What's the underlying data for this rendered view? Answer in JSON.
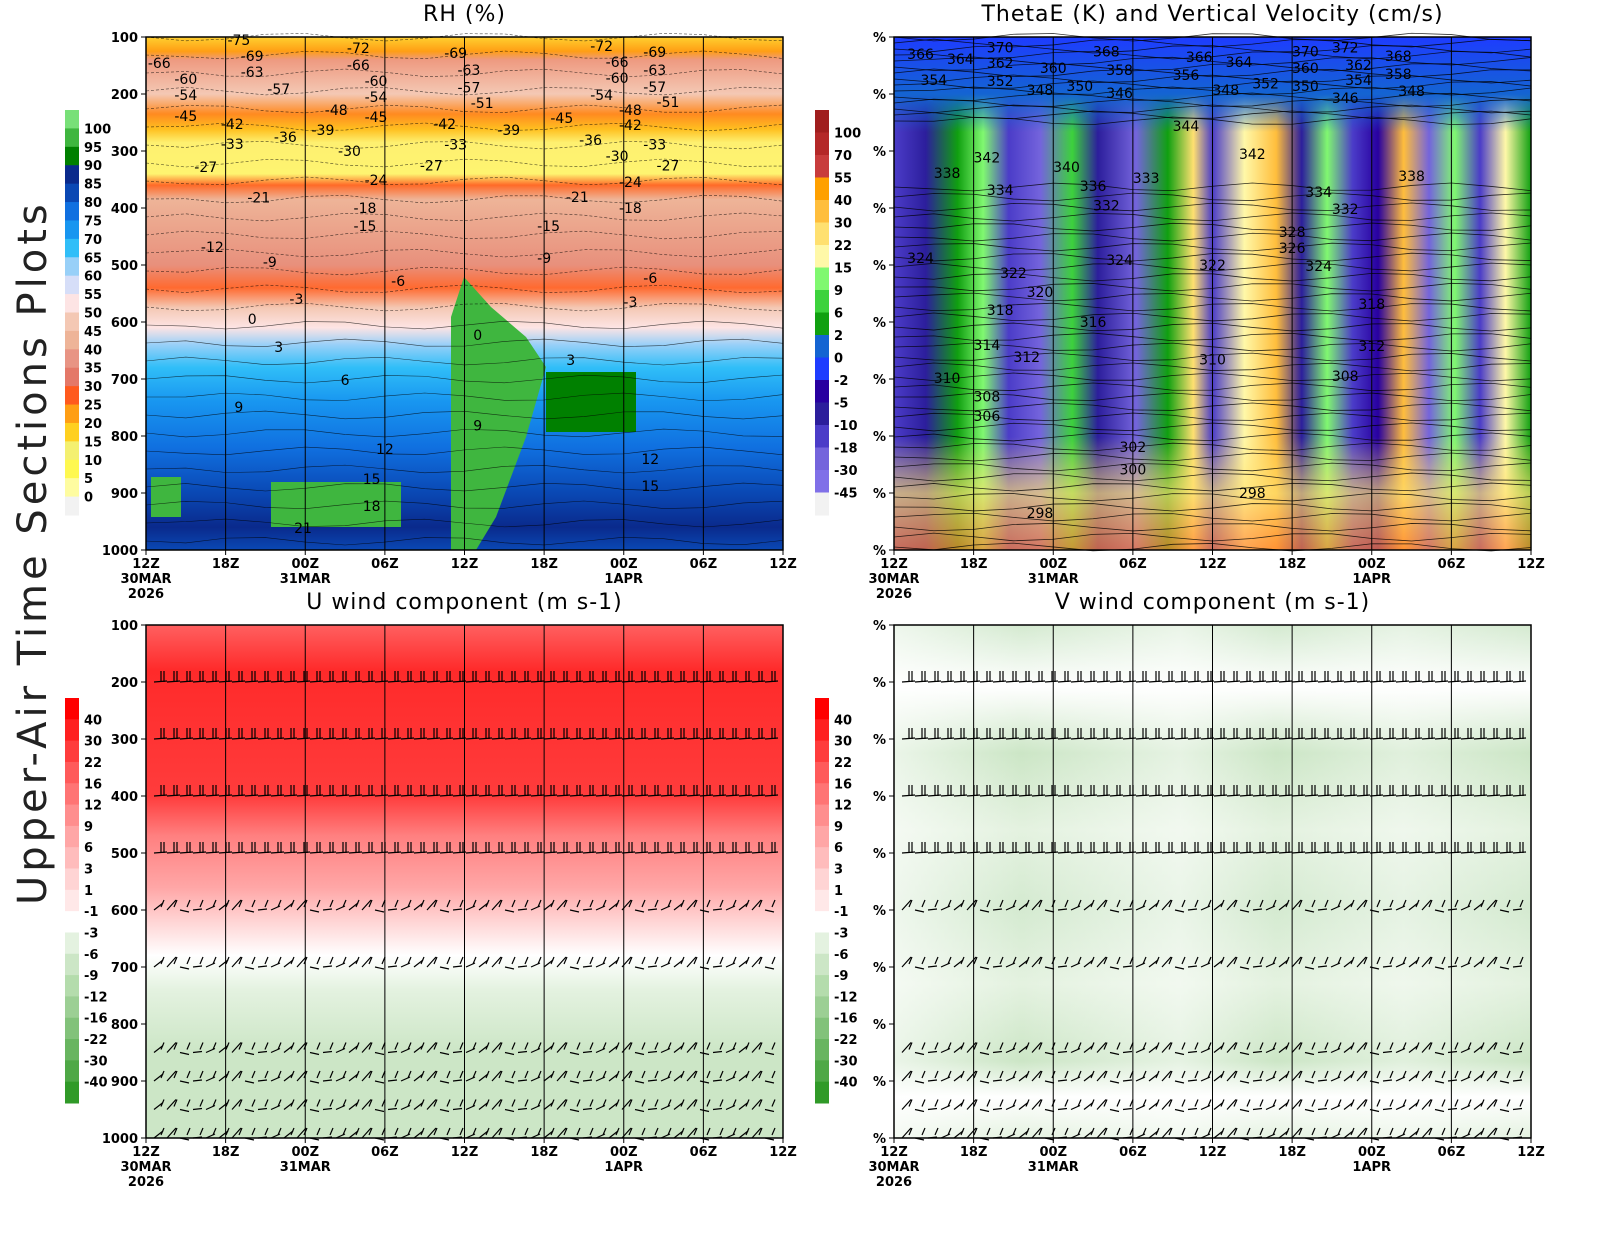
{
  "page_title": "Upper-Air Time Sections Plots",
  "time_axis": {
    "start": "2026-03-30T12:00",
    "end": "2026-04-01T12:00",
    "ticks": [
      {
        "hour": "12Z",
        "day": "30MAR",
        "year": "2026"
      },
      {
        "hour": "18Z",
        "day": "",
        "year": ""
      },
      {
        "hour": "00Z",
        "day": "31MAR",
        "year": ""
      },
      {
        "hour": "06Z",
        "day": "",
        "year": ""
      },
      {
        "hour": "12Z",
        "day": "",
        "year": ""
      },
      {
        "hour": "18Z",
        "day": "",
        "year": ""
      },
      {
        "hour": "00Z",
        "day": "1APR",
        "year": ""
      },
      {
        "hour": "06Z",
        "day": "",
        "year": ""
      },
      {
        "hour": "12Z",
        "day": "",
        "year": ""
      }
    ]
  },
  "chart_data": [
    {
      "id": "rh",
      "type": "heatmap",
      "title": "RH (%)",
      "ylim": [
        1000,
        100
      ],
      "y_ticks": [
        "100",
        "200",
        "300",
        "400",
        "500",
        "600",
        "700",
        "800",
        "900",
        "1000"
      ],
      "colorbar": {
        "labels": [
          "100",
          "95",
          "90",
          "85",
          "80",
          "75",
          "70",
          "65",
          "60",
          "55",
          "50",
          "45",
          "40",
          "35",
          "30",
          "25",
          "20",
          "15",
          "10",
          "5",
          "0"
        ],
        "colors": [
          "#78e078",
          "#3fb63f",
          "#008000",
          "#0a2a8c",
          "#0a48b4",
          "#1070e0",
          "#1896f0",
          "#30bef8",
          "#98d0f8",
          "#d6def8",
          "#fde4e4",
          "#f4c8b4",
          "#eeb498",
          "#e89484",
          "#e47868",
          "#ff5a1e",
          "#ff9e14",
          "#ffd020",
          "#f4f070",
          "#fef850",
          "#fefca0",
          "#f2f2f2"
        ]
      },
      "contour_labels": [
        {
          "t": "2026-03-30T13:00",
          "p": 146,
          "v": "-66"
        },
        {
          "t": "2026-03-30T15:00",
          "p": 174,
          "v": "-60"
        },
        {
          "t": "2026-03-30T15:00",
          "p": 202,
          "v": "-54"
        },
        {
          "t": "2026-03-30T15:00",
          "p": 239,
          "v": "-45"
        },
        {
          "t": "2026-03-30T19:00",
          "p": 105,
          "v": "-75"
        },
        {
          "t": "2026-03-30T20:00",
          "p": 133,
          "v": "-69"
        },
        {
          "t": "2026-03-30T20:00",
          "p": 161,
          "v": "-63"
        },
        {
          "t": "2026-03-30T22:00",
          "p": 191,
          "v": "-57"
        },
        {
          "t": "2026-03-30T18:30",
          "p": 253,
          "v": "-42"
        },
        {
          "t": "2026-03-30T18:30",
          "p": 288,
          "v": "-33"
        },
        {
          "t": "2026-03-30T22:30",
          "p": 275,
          "v": "-36"
        },
        {
          "t": "2026-03-30T16:30",
          "p": 328,
          "v": "-27"
        },
        {
          "t": "2026-03-30T20:30",
          "p": 382,
          "v": "-21"
        },
        {
          "t": "2026-03-30T17:00",
          "p": 468,
          "v": "-12"
        },
        {
          "t": "2026-03-30T21:20",
          "p": 495,
          "v": "-9"
        },
        {
          "t": "2026-03-30T23:20",
          "p": 560,
          "v": "-3"
        },
        {
          "t": "2026-03-30T20:00",
          "p": 595,
          "v": "0"
        },
        {
          "t": "2026-03-30T22:00",
          "p": 644,
          "v": "3"
        },
        {
          "t": "2026-03-30T19:00",
          "p": 749,
          "v": "9"
        },
        {
          "t": "2026-03-31T03:00",
          "p": 702,
          "v": "6"
        },
        {
          "t": "2026-03-31T06:00",
          "p": 823,
          "v": "12"
        },
        {
          "t": "2026-03-31T05:00",
          "p": 875,
          "v": "15"
        },
        {
          "t": "2026-03-31T05:00",
          "p": 923,
          "v": "18"
        },
        {
          "t": "2026-03-30T23:50",
          "p": 961,
          "v": "21"
        },
        {
          "t": "2026-03-31T04:00",
          "p": 119,
          "v": "-72"
        },
        {
          "t": "2026-03-31T04:00",
          "p": 149,
          "v": "-66"
        },
        {
          "t": "2026-03-31T05:20",
          "p": 177,
          "v": "-60"
        },
        {
          "t": "2026-03-31T05:20",
          "p": 205,
          "v": "-54"
        },
        {
          "t": "2026-03-31T02:20",
          "p": 228,
          "v": "-48"
        },
        {
          "t": "2026-03-31T05:20",
          "p": 240,
          "v": "-45"
        },
        {
          "t": "2026-03-31T01:20",
          "p": 263,
          "v": "-39"
        },
        {
          "t": "2026-03-31T03:20",
          "p": 300,
          "v": "-30"
        },
        {
          "t": "2026-03-31T05:20",
          "p": 351,
          "v": "-24"
        },
        {
          "t": "2026-03-31T04:30",
          "p": 400,
          "v": "-18"
        },
        {
          "t": "2026-03-31T04:30",
          "p": 432,
          "v": "-15"
        },
        {
          "t": "2026-03-31T09:30",
          "p": 325,
          "v": "-27"
        },
        {
          "t": "2026-03-31T07:00",
          "p": 528,
          "v": "-6"
        },
        {
          "t": "2026-03-31T11:20",
          "p": 128,
          "v": "-69"
        },
        {
          "t": "2026-03-31T12:20",
          "p": 158,
          "v": "-63"
        },
        {
          "t": "2026-03-31T12:20",
          "p": 189,
          "v": "-57"
        },
        {
          "t": "2026-03-31T13:20",
          "p": 216,
          "v": "-51"
        },
        {
          "t": "2026-03-31T10:30",
          "p": 253,
          "v": "-42"
        },
        {
          "t": "2026-03-31T11:20",
          "p": 289,
          "v": "-33"
        },
        {
          "t": "2026-03-31T15:20",
          "p": 263,
          "v": "-39"
        },
        {
          "t": "2026-03-31T13:00",
          "p": 623,
          "v": "0"
        },
        {
          "t": "2026-03-31T13:00",
          "p": 782,
          "v": "9"
        },
        {
          "t": "2026-03-31T20:00",
          "p": 667,
          "v": "3"
        },
        {
          "t": "2026-03-31T18:20",
          "p": 432,
          "v": "-15"
        },
        {
          "t": "2026-03-31T18:00",
          "p": 488,
          "v": "-9"
        },
        {
          "t": "2026-03-31T20:30",
          "p": 381,
          "v": "-21"
        },
        {
          "t": "2026-03-31T19:20",
          "p": 242,
          "v": "-45"
        },
        {
          "t": "2026-03-31T21:30",
          "p": 281,
          "v": "-36"
        },
        {
          "t": "2026-03-31T22:20",
          "p": 116,
          "v": "-72"
        },
        {
          "t": "2026-03-31T23:30",
          "p": 144,
          "v": "-66"
        },
        {
          "t": "2026-03-31T23:30",
          "p": 172,
          "v": "-60"
        },
        {
          "t": "2026-03-31T22:20",
          "p": 202,
          "v": "-54"
        },
        {
          "t": "2026-04-01T00:30",
          "p": 228,
          "v": "-48"
        },
        {
          "t": "2026-04-01T00:30",
          "p": 254,
          "v": "-42"
        },
        {
          "t": "2026-03-31T23:30",
          "p": 309,
          "v": "-30"
        },
        {
          "t": "2026-04-01T00:30",
          "p": 354,
          "v": "-24"
        },
        {
          "t": "2026-04-01T00:30",
          "p": 400,
          "v": "-18"
        },
        {
          "t": "2026-04-01T00:30",
          "p": 565,
          "v": "-3"
        },
        {
          "t": "2026-04-01T02:20",
          "p": 126,
          "v": "-69"
        },
        {
          "t": "2026-04-01T02:20",
          "p": 158,
          "v": "-63"
        },
        {
          "t": "2026-04-01T02:20",
          "p": 188,
          "v": "-57"
        },
        {
          "t": "2026-04-01T03:20",
          "p": 214,
          "v": "-51"
        },
        {
          "t": "2026-04-01T02:20",
          "p": 289,
          "v": "-33"
        },
        {
          "t": "2026-04-01T03:20",
          "p": 325,
          "v": "-27"
        },
        {
          "t": "2026-04-01T02:00",
          "p": 523,
          "v": "-6"
        },
        {
          "t": "2026-04-01T02:00",
          "p": 840,
          "v": "12"
        },
        {
          "t": "2026-04-01T02:00",
          "p": 888,
          "v": "15"
        }
      ]
    },
    {
      "id": "thetae",
      "type": "heatmap",
      "title": "ThetaE (K) and Vertical Velocity (cm/s)",
      "ylim": [
        1000,
        100
      ],
      "y_ticks": [
        "%",
        "%",
        "%",
        "%",
        "%",
        "%",
        "%",
        "%",
        "%",
        "%"
      ],
      "colorbar": {
        "labels": [
          "100",
          "70",
          "55",
          "40",
          "30",
          "22",
          "15",
          "9",
          "6",
          "2",
          "0",
          "-2",
          "-5",
          "-10",
          "-18",
          "-30",
          "-45"
        ],
        "colors": [
          "#a01e1e",
          "#b42828",
          "#c83c3c",
          "#ffa000",
          "#ffbe3c",
          "#ffe070",
          "#fff8a8",
          "#80f870",
          "#3cd23c",
          "#10a010",
          "#1464d2",
          "#1e3cff",
          "#2800a0",
          "#2c1e9c",
          "#4b3cc8",
          "#7464dc",
          "#8070e8",
          "#f2f2f2"
        ]
      },
      "contour_labels": [
        {
          "t": "2026-03-30T14:00",
          "p": 130,
          "v": "366"
        },
        {
          "t": "2026-03-30T17:00",
          "p": 139,
          "v": "364"
        },
        {
          "t": "2026-03-30T20:00",
          "p": 118,
          "v": "370"
        },
        {
          "t": "2026-03-30T20:00",
          "p": 146,
          "v": "362"
        },
        {
          "t": "2026-03-31T04:00",
          "p": 125,
          "v": "368"
        },
        {
          "t": "2026-03-31T00:00",
          "p": 154,
          "v": "360"
        },
        {
          "t": "2026-03-31T05:00",
          "p": 158,
          "v": "358"
        },
        {
          "t": "2026-03-30T15:00",
          "p": 175,
          "v": "354"
        },
        {
          "t": "2026-03-30T20:00",
          "p": 177,
          "v": "352"
        },
        {
          "t": "2026-03-30T23:00",
          "p": 193,
          "v": "348"
        },
        {
          "t": "2026-03-31T02:00",
          "p": 186,
          "v": "350"
        },
        {
          "t": "2026-03-31T05:00",
          "p": 198,
          "v": "346"
        },
        {
          "t": "2026-03-31T11:00",
          "p": 135,
          "v": "366"
        },
        {
          "t": "2026-03-31T14:00",
          "p": 144,
          "v": "364"
        },
        {
          "t": "2026-03-31T10:00",
          "p": 167,
          "v": "356"
        },
        {
          "t": "2026-03-31T13:00",
          "p": 193,
          "v": "348"
        },
        {
          "t": "2026-03-31T16:00",
          "p": 182,
          "v": "352"
        },
        {
          "t": "2026-03-31T19:00",
          "p": 125,
          "v": "370"
        },
        {
          "t": "2026-03-31T22:00",
          "p": 118,
          "v": "372"
        },
        {
          "t": "2026-03-31T19:00",
          "p": 154,
          "v": "360"
        },
        {
          "t": "2026-03-31T23:00",
          "p": 149,
          "v": "362"
        },
        {
          "t": "2026-04-01T02:00",
          "p": 133,
          "v": "368"
        },
        {
          "t": "2026-04-01T02:00",
          "p": 165,
          "v": "358"
        },
        {
          "t": "2026-03-31T23:00",
          "p": 175,
          "v": "354"
        },
        {
          "t": "2026-03-31T19:00",
          "p": 186,
          "v": "350"
        },
        {
          "t": "2026-03-31T22:00",
          "p": 207,
          "v": "346"
        },
        {
          "t": "2026-04-01T03:00",
          "p": 195,
          "v": "348"
        },
        {
          "t": "2026-03-31T10:00",
          "p": 256,
          "v": "344"
        },
        {
          "t": "2026-03-30T19:00",
          "p": 311,
          "v": "342"
        },
        {
          "t": "2026-03-30T16:00",
          "p": 339,
          "v": "338"
        },
        {
          "t": "2026-03-30T20:00",
          "p": 368,
          "v": "334"
        },
        {
          "t": "2026-03-31T01:00",
          "p": 328,
          "v": "340"
        },
        {
          "t": "2026-03-31T03:00",
          "p": 361,
          "v": "336"
        },
        {
          "t": "2026-03-31T07:00",
          "p": 347,
          "v": "333"
        },
        {
          "t": "2026-03-31T04:00",
          "p": 396,
          "v": "332"
        },
        {
          "t": "2026-03-31T15:00",
          "p": 305,
          "v": "342"
        },
        {
          "t": "2026-03-31T20:00",
          "p": 372,
          "v": "334"
        },
        {
          "t": "2026-03-31T22:00",
          "p": 402,
          "v": "332"
        },
        {
          "t": "2026-04-01T03:00",
          "p": 344,
          "v": "338"
        },
        {
          "t": "2026-03-31T18:00",
          "p": 442,
          "v": "328"
        },
        {
          "t": "2026-03-31T18:00",
          "p": 470,
          "v": "326"
        },
        {
          "t": "2026-03-31T20:00",
          "p": 502,
          "v": "324"
        },
        {
          "t": "2026-03-30T14:00",
          "p": 488,
          "v": "324"
        },
        {
          "t": "2026-03-30T21:00",
          "p": 514,
          "v": "322"
        },
        {
          "t": "2026-03-30T23:00",
          "p": 547,
          "v": "320"
        },
        {
          "t": "2026-03-30T20:00",
          "p": 579,
          "v": "318"
        },
        {
          "t": "2026-03-31T03:00",
          "p": 600,
          "v": "316"
        },
        {
          "t": "2026-03-31T05:00",
          "p": 491,
          "v": "324"
        },
        {
          "t": "2026-03-31T12:00",
          "p": 500,
          "v": "322"
        },
        {
          "t": "2026-03-30T19:00",
          "p": 640,
          "v": "314"
        },
        {
          "t": "2026-03-30T22:00",
          "p": 661,
          "v": "312"
        },
        {
          "t": "2026-03-30T16:00",
          "p": 698,
          "v": "310"
        },
        {
          "t": "2026-03-30T19:00",
          "p": 731,
          "v": "308"
        },
        {
          "t": "2026-03-30T19:00",
          "p": 765,
          "v": "306"
        },
        {
          "t": "2026-03-31T12:00",
          "p": 666,
          "v": "310"
        },
        {
          "t": "2026-04-01T00:00",
          "p": 568,
          "v": "318"
        },
        {
          "t": "2026-04-01T00:00",
          "p": 642,
          "v": "312"
        },
        {
          "t": "2026-03-31T22:00",
          "p": 695,
          "v": "308"
        },
        {
          "t": "2026-03-31T06:00",
          "p": 819,
          "v": "302"
        },
        {
          "t": "2026-03-31T06:00",
          "p": 859,
          "v": "300"
        },
        {
          "t": "2026-03-30T23:00",
          "p": 935,
          "v": "298"
        },
        {
          "t": "2026-03-31T15:00",
          "p": 900,
          "v": "298"
        }
      ]
    },
    {
      "id": "u",
      "type": "heatmap",
      "title": "U wind component (m s-1)",
      "ylim": [
        1000,
        100
      ],
      "y_ticks": [
        "100",
        "200",
        "300",
        "400",
        "500",
        "600",
        "700",
        "800",
        "900",
        "1000"
      ],
      "barb_levels_hPa": [
        200,
        300,
        400,
        500,
        600,
        700,
        850,
        900,
        950,
        1000
      ],
      "colorbar": {
        "labels": [
          "40",
          "30",
          "22",
          "16",
          "12",
          "9",
          "6",
          "3",
          "1",
          "-1",
          "-3",
          "-6",
          "-9",
          "-12",
          "-16",
          "-22",
          "-30",
          "-40"
        ],
        "colors": [
          "#ff0000",
          "#ff2020",
          "#ff3c3c",
          "#ff5a5a",
          "#ff7474",
          "#ff8e8e",
          "#ffa6a6",
          "#ffbcbc",
          "#ffd4d4",
          "#ffe8e8",
          "#ffffff",
          "#e4f2e0",
          "#cce6c6",
          "#b4dcac",
          "#9ccf94",
          "#82c27a",
          "#68b560",
          "#4ea846",
          "#309a28"
        ]
      }
    },
    {
      "id": "v",
      "type": "heatmap",
      "title": "V wind component (m s-1)",
      "ylim": [
        1000,
        100
      ],
      "y_ticks": [
        "%",
        "%",
        "%",
        "%",
        "%",
        "%",
        "%",
        "%",
        "%",
        "%"
      ],
      "barb_levels_hPa": [
        200,
        300,
        400,
        500,
        600,
        700,
        850,
        900,
        950,
        1000
      ],
      "colorbar": {
        "labels": [
          "40",
          "30",
          "22",
          "16",
          "12",
          "9",
          "6",
          "3",
          "1",
          "-1",
          "-3",
          "-6",
          "-9",
          "-12",
          "-16",
          "-22",
          "-30",
          "-40"
        ],
        "colors": [
          "#ff0000",
          "#ff2020",
          "#ff3c3c",
          "#ff5a5a",
          "#ff7474",
          "#ff8e8e",
          "#ffa6a6",
          "#ffbcbc",
          "#ffd4d4",
          "#ffe8e8",
          "#ffffff",
          "#e4f2e0",
          "#cce6c6",
          "#b4dcac",
          "#9ccf94",
          "#82c27a",
          "#68b560",
          "#4ea846",
          "#309a28"
        ]
      }
    }
  ]
}
